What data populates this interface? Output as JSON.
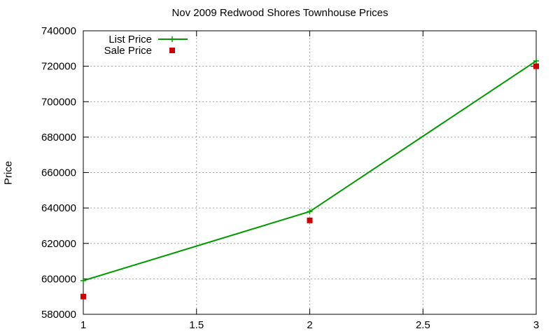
{
  "chart_data": {
    "type": "line",
    "title": "Nov 2009 Redwood Shores Townhouse Prices",
    "xlabel": "",
    "ylabel": "Price",
    "xlim": [
      1,
      3
    ],
    "ylim": [
      580000,
      740000
    ],
    "x_ticks": [
      "1",
      "1.5",
      "2",
      "2.5",
      "3"
    ],
    "x_tick_values": [
      1,
      1.5,
      2,
      2.5,
      3
    ],
    "y_ticks": [
      "580000",
      "600000",
      "620000",
      "640000",
      "660000",
      "680000",
      "700000",
      "720000",
      "740000"
    ],
    "y_tick_values": [
      580000,
      600000,
      620000,
      640000,
      660000,
      680000,
      700000,
      720000,
      740000
    ],
    "grid": true,
    "legend_position": "top-left",
    "series": [
      {
        "name": "List Price",
        "style": "line-with-plus-markers",
        "color": "#009900",
        "x": [
          1,
          2,
          3
        ],
        "y": [
          599000,
          638000,
          723000
        ]
      },
      {
        "name": "Sale Price",
        "style": "square-markers",
        "color": "#cc0000",
        "x": [
          1,
          2,
          3
        ],
        "y": [
          590000,
          633000,
          720000
        ]
      }
    ]
  }
}
